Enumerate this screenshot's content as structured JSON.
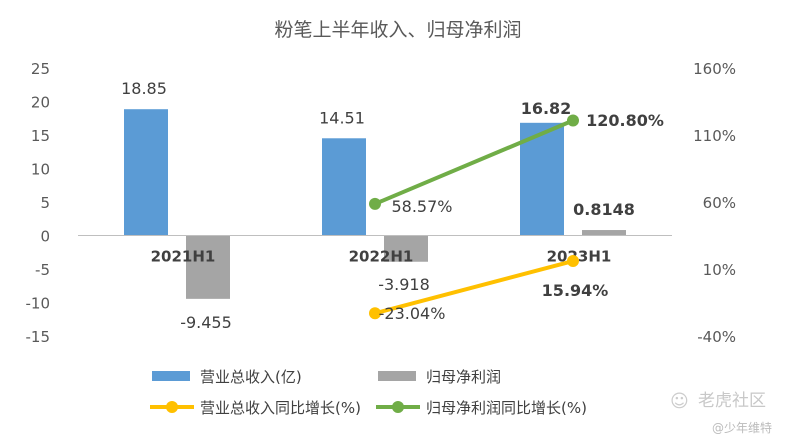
{
  "chart_data": {
    "type": "bar",
    "title": "粉笔上半年收入、归母净利润",
    "categories": [
      "2021H1",
      "2022H1",
      "2023H1"
    ],
    "series": [
      {
        "name": "营业总收入(亿)",
        "kind": "bar",
        "axis": "left",
        "color": "#5B9BD5",
        "values": [
          18.85,
          14.51,
          16.82
        ],
        "labels": [
          "18.85",
          "14.51",
          "16.82"
        ]
      },
      {
        "name": "归母净利润",
        "kind": "bar",
        "axis": "left",
        "color": "#A5A5A5",
        "values": [
          -9.455,
          -3.918,
          0.8148
        ],
        "labels": [
          "-9.455",
          "-3.918",
          "0.8148"
        ]
      },
      {
        "name": "营业总收入同比增长(%)",
        "kind": "line",
        "axis": "right",
        "color": "#FFC000",
        "values": [
          null,
          -23.04,
          15.94
        ],
        "labels": [
          "",
          "-23.04%",
          "15.94%"
        ]
      },
      {
        "name": "归母净利润同比增长(%)",
        "kind": "line",
        "axis": "right",
        "color": "#70AD47",
        "values": [
          null,
          58.57,
          120.8
        ],
        "labels": [
          "",
          "58.57%",
          "120.80%"
        ]
      }
    ],
    "y_left": {
      "min": -15,
      "max": 25,
      "ticks": [
        25,
        20,
        15,
        10,
        5,
        0,
        -5,
        -10,
        -15
      ]
    },
    "y_right": {
      "min": -40,
      "max": 160,
      "ticks": [
        "160%",
        "110%",
        "60%",
        "10%",
        "-40%"
      ]
    },
    "legend_position": "bottom",
    "grid": false
  },
  "watermark": {
    "main": "老虎社区",
    "sub": "@少年维特"
  }
}
